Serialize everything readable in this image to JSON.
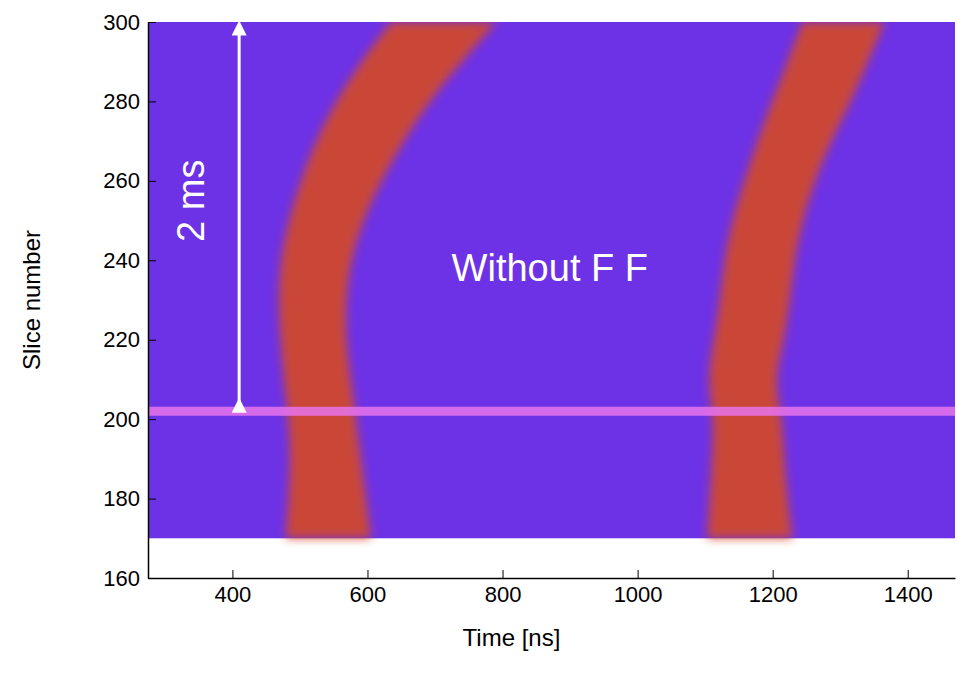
{
  "chart_data": {
    "type": "band",
    "x_label": "Time [ns]",
    "y_label": "Slice number",
    "xlim": [
      275,
      1470
    ],
    "ylim": [
      160,
      300
    ],
    "xticks": [
      400,
      600,
      800,
      1000,
      1200,
      1400
    ],
    "yticks": [
      160,
      180,
      200,
      220,
      240,
      260,
      280,
      300
    ],
    "background_color": "#6e32e6",
    "y": [
      170,
      180,
      190,
      200,
      210,
      220,
      230,
      240,
      250,
      260,
      270,
      280,
      290,
      300
    ],
    "series": [
      {
        "color": "#d2482a",
        "x_low": [
          479,
          483,
          486,
          483,
          476,
          471,
          468,
          471,
          483,
          501,
          523,
          553,
          590,
          635
        ],
        "x_high": [
          605,
          598,
          590,
          583,
          575,
          568,
          568,
          575,
          593,
          620,
          653,
          691,
          739,
          791
        ]
      },
      {
        "color": "#d2482a",
        "x_low": [
          1103,
          1107,
          1110,
          1113,
          1103,
          1113,
          1122,
          1128,
          1140,
          1158,
          1177,
          1199,
          1222,
          1244
        ],
        "x_high": [
          1229,
          1222,
          1217,
          1214,
          1202,
          1217,
          1226,
          1232,
          1244,
          1262,
          1286,
          1316,
          1341,
          1366
        ]
      }
    ],
    "reference_line": {
      "y": 202,
      "color": "#e874ec"
    },
    "annotations": [
      {
        "text": "2 ms",
        "x": 410,
        "y_from": 202,
        "y_to": 300,
        "label_x": 338,
        "label_y": 255
      },
      {
        "text": "Without F F",
        "x": 870,
        "y": 238
      }
    ]
  }
}
